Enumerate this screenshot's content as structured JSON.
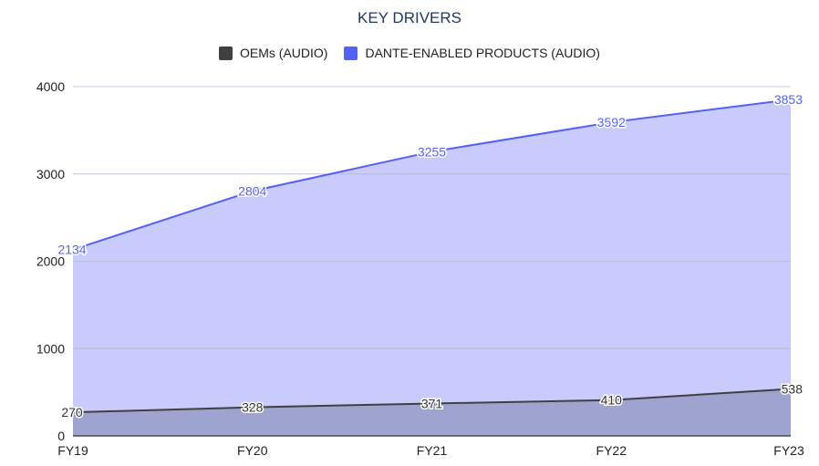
{
  "chart_data": {
    "type": "area",
    "title": "KEY DRIVERS",
    "categories": [
      "FY19",
      "FY20",
      "FY21",
      "FY22",
      "FY23"
    ],
    "series": [
      {
        "name": "OEMs (AUDIO)",
        "values": [
          270,
          328,
          371,
          410,
          538
        ],
        "color": "#404040",
        "fill": "#9fa3cf"
      },
      {
        "name": "DANTE-ENABLED PRODUCTS (AUDIO)",
        "values": [
          2134,
          2804,
          3255,
          3592,
          3853
        ],
        "color": "#5461f5",
        "fill": "#c8cbfb"
      }
    ],
    "y_ticks": [
      "0",
      "1000",
      "2000",
      "3000",
      "4000"
    ],
    "ylim": [
      0,
      4000
    ],
    "grid": true,
    "legend_position": "top"
  }
}
